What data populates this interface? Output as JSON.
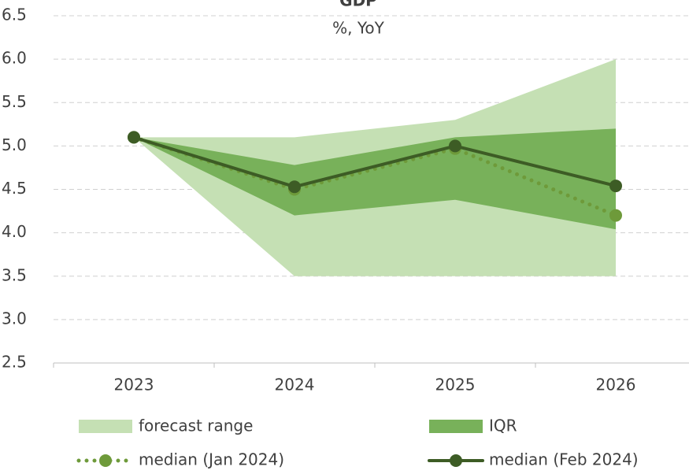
{
  "chart_data": {
    "type": "line",
    "title": "GDP",
    "subtitle": "%, YoY",
    "categories": [
      "2023",
      "2024",
      "2025",
      "2026"
    ],
    "bands": [
      {
        "name": "forecast range",
        "color": "#c5e0b4",
        "upper": [
          5.1,
          5.1,
          5.3,
          6.0
        ],
        "lower": [
          5.1,
          3.5,
          3.5,
          3.5
        ]
      },
      {
        "name": "IQR",
        "color": "#78b15a",
        "upper": [
          5.1,
          4.78,
          5.1,
          5.2
        ],
        "lower": [
          5.1,
          4.2,
          4.38,
          4.04
        ]
      }
    ],
    "series": [
      {
        "name": "median (Jan 2024)",
        "color": "#6e9a3a",
        "style": "dotted",
        "values": [
          5.1,
          4.5,
          4.97,
          4.2
        ]
      },
      {
        "name": "median (Feb 2024)",
        "color": "#3d5c25",
        "style": "solid",
        "values": [
          5.1,
          4.53,
          5.0,
          4.54
        ]
      }
    ],
    "ylim": [
      2.5,
      6.5
    ],
    "yticks": [
      2.5,
      {
        "value": 3,
        "label": "3.0"
      },
      3.5,
      {
        "value": 4,
        "label": "4.0"
      },
      4.5,
      {
        "value": 5,
        "label": "5.0"
      },
      5.5,
      {
        "value": 6,
        "label": "6.0"
      },
      6.5
    ],
    "grid": true
  }
}
